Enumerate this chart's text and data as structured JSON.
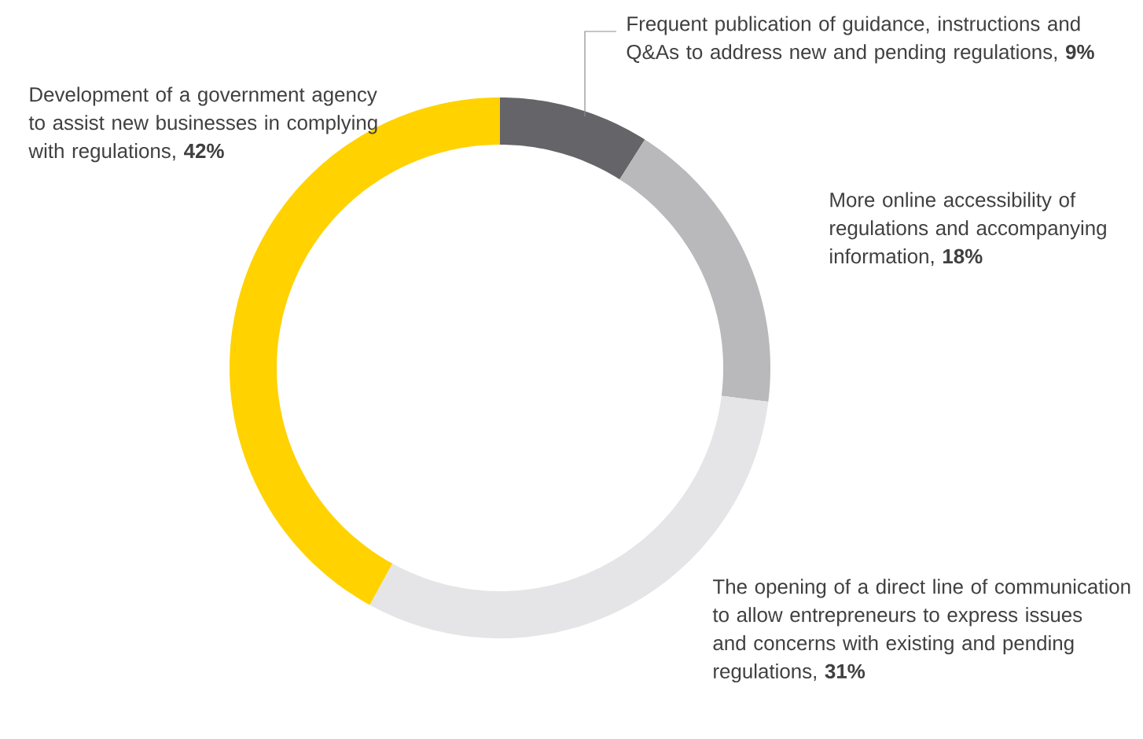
{
  "chart_data": {
    "type": "donut",
    "categories": [
      "Frequent publication of guidance, instructions and Q&As to address new and pending regulations, **9%**",
      "More online accessibility of regulations and accompanying information, **18%**",
      "The opening of a direct line of communication to allow entrepreneurs to express issues and concerns with existing and pending regulations, **31%**",
      "Development of a government agency to assist new businesses in complying with regulations, **42%**"
    ],
    "values": [
      9,
      18,
      31,
      42
    ],
    "colors": [
      "#646469",
      "#b9b9bc",
      "#e5e5e7",
      "#ffd200"
    ]
  }
}
